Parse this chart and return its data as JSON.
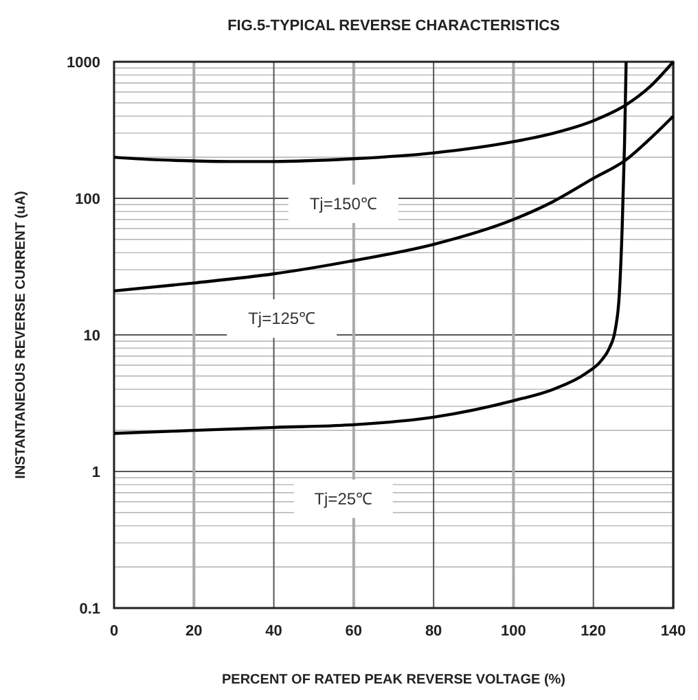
{
  "chart_data": {
    "type": "line",
    "title": "FIG.5-TYPICAL REVERSE CHARACTERISTICS",
    "xlabel": "PERCENT OF RATED PEAK REVERSE VOLTAGE (%)",
    "ylabel": "INSTANTANEOUS REVERSE CURRENT (uA)",
    "xlim": [
      0,
      140
    ],
    "xticks": [
      0,
      20,
      40,
      60,
      80,
      100,
      120,
      140
    ],
    "ylim": [
      0.1,
      1000
    ],
    "yticks": [
      0.1,
      1,
      10,
      100,
      1000
    ],
    "log": true,
    "grid": true,
    "marker": "none",
    "line_style": "solid",
    "series": [
      {
        "color": "#000000",
        "x": [
          0,
          10,
          20,
          30,
          40,
          60,
          80,
          100,
          110,
          120,
          128,
          134,
          140
        ],
        "values": [
          200,
          192,
          188,
          186,
          186,
          195,
          215,
          260,
          300,
          370,
          480,
          650,
          1000
        ]
      },
      {
        "color": "#000000",
        "x": [
          0,
          20,
          40,
          60,
          80,
          100,
          110,
          120,
          128,
          134,
          140
        ],
        "values": [
          21,
          24,
          28,
          35,
          46,
          70,
          95,
          140,
          190,
          270,
          400
        ]
      },
      {
        "color": "#000000",
        "x": [
          0,
          20,
          40,
          60,
          80,
          100,
          110,
          118,
          122,
          124,
          125.5,
          126.5,
          127.2,
          127.8,
          128.2
        ],
        "values": [
          1.9,
          2.0,
          2.1,
          2.2,
          2.5,
          3.3,
          4.0,
          5.2,
          6.5,
          8,
          11,
          20,
          60,
          250,
          1000
        ]
      }
    ],
    "annotations": [
      "Tj=150℃",
      "Tj=125℃",
      "Tj=25℃"
    ]
  }
}
